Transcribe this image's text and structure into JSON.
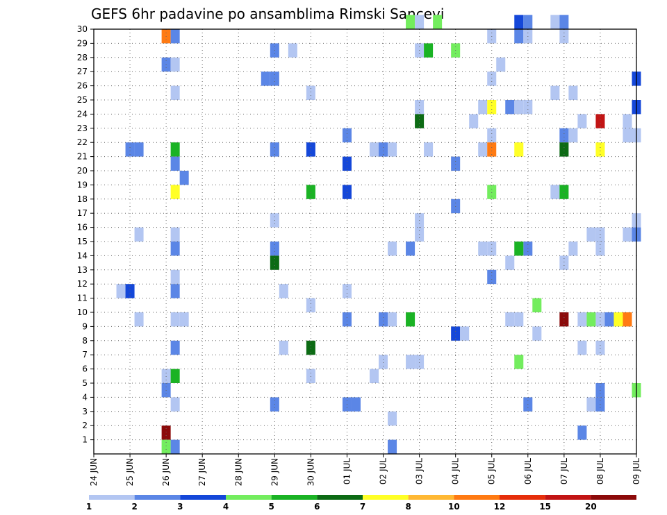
{
  "chart_data": {
    "type": "heatmap",
    "title": "GEFS 6hr padavine po ansamblima Rimski Sancevi",
    "xlabel": "",
    "ylabel": "",
    "x_ticks": [
      "24 JUN",
      "25 JUN",
      "26 JUN",
      "27 JUN",
      "28 JUN",
      "29 JUN",
      "30 JUN",
      "01 JUL",
      "02 JUL",
      "03 JUL",
      "04 JUL",
      "05 JUL",
      "06 JUL",
      "07 JUL",
      "08 JUL",
      "09 JUL"
    ],
    "y_ticks": [
      1,
      2,
      3,
      4,
      5,
      6,
      7,
      8,
      9,
      10,
      11,
      12,
      13,
      14,
      15,
      16,
      17,
      18,
      19,
      20,
      21,
      22,
      23,
      24,
      25,
      26,
      27,
      28,
      29,
      30
    ],
    "ylim": [
      0,
      30
    ],
    "time_step_hours": 6,
    "grid": true,
    "legend": {
      "position": "bottom",
      "levels": [
        "1",
        "2",
        "3",
        "4",
        "5",
        "6",
        "7",
        "8",
        "10",
        "12",
        "15",
        "20"
      ],
      "colors": [
        "#b3c6f2",
        "#5b86e6",
        "#1447d9",
        "#73ed5e",
        "#1ab324",
        "#0c6b14",
        "#ffff26",
        "#ffb833",
        "#ff7a12",
        "#e62e0a",
        "#c21414",
        "#8c0a0a"
      ]
    },
    "cells": [
      {
        "x": "26 JUN 00Z",
        "member": 29,
        "value": 10
      },
      {
        "x": "26 JUN 06Z",
        "member": 29,
        "value": 2
      },
      {
        "x": "26 JUN 00Z",
        "member": 27,
        "value": 2
      },
      {
        "x": "26 JUN 06Z",
        "member": 27,
        "value": 1
      },
      {
        "x": "26 JUN 06Z",
        "member": 25,
        "value": 1
      },
      {
        "x": "25 JUN 00Z",
        "member": 21,
        "value": 2
      },
      {
        "x": "25 JUN 06Z",
        "member": 21,
        "value": 2
      },
      {
        "x": "26 JUN 06Z",
        "member": 21,
        "value": 5
      },
      {
        "x": "26 JUN 06Z",
        "member": 20,
        "value": 2
      },
      {
        "x": "26 JUN 12Z",
        "member": 19,
        "value": 2
      },
      {
        "x": "26 JUN 06Z",
        "member": 18,
        "value": 7
      },
      {
        "x": "25 JUN 06Z",
        "member": 15,
        "value": 1
      },
      {
        "x": "26 JUN 06Z",
        "member": 15,
        "value": 1
      },
      {
        "x": "26 JUN 06Z",
        "member": 14,
        "value": 2
      },
      {
        "x": "26 JUN 06Z",
        "member": 12,
        "value": 1
      },
      {
        "x": "24 JUN 18Z",
        "member": 11,
        "value": 1
      },
      {
        "x": "25 JUN 00Z",
        "member": 11,
        "value": 3
      },
      {
        "x": "26 JUN 06Z",
        "member": 11,
        "value": 2
      },
      {
        "x": "25 JUN 06Z",
        "member": 9,
        "value": 1
      },
      {
        "x": "26 JUN 06Z",
        "member": 9,
        "value": 1
      },
      {
        "x": "26 JUN 12Z",
        "member": 9,
        "value": 1
      },
      {
        "x": "26 JUN 06Z",
        "member": 7,
        "value": 2
      },
      {
        "x": "26 JUN 00Z",
        "member": 5,
        "value": 1
      },
      {
        "x": "26 JUN 06Z",
        "member": 5,
        "value": 5
      },
      {
        "x": "26 JUN 00Z",
        "member": 4,
        "value": 2
      },
      {
        "x": "26 JUN 06Z",
        "member": 3,
        "value": 1
      },
      {
        "x": "26 JUN 00Z",
        "member": 1,
        "value": 20
      },
      {
        "x": "26 JUN 00Z",
        "member": 0,
        "value": 4
      },
      {
        "x": "26 JUN 06Z",
        "member": 0,
        "value": 2
      },
      {
        "x": "29 JUN 00Z",
        "member": 28,
        "value": 2
      },
      {
        "x": "29 JUN 12Z",
        "member": 28,
        "value": 1
      },
      {
        "x": "28 JUN 18Z",
        "member": 26,
        "value": 2
      },
      {
        "x": "29 JUN 00Z",
        "member": 26,
        "value": 2
      },
      {
        "x": "30 JUN 00Z",
        "member": 25,
        "value": 1
      },
      {
        "x": "29 JUN 00Z",
        "member": 21,
        "value": 2
      },
      {
        "x": "30 JUN 00Z",
        "member": 21,
        "value": 3
      },
      {
        "x": "30 JUN 00Z",
        "member": 18,
        "value": 5
      },
      {
        "x": "29 JUN 00Z",
        "member": 16,
        "value": 1
      },
      {
        "x": "29 JUN 00Z",
        "member": 14,
        "value": 2
      },
      {
        "x": "29 JUN 00Z",
        "member": 13,
        "value": 6
      },
      {
        "x": "29 JUN 06Z",
        "member": 11,
        "value": 1
      },
      {
        "x": "30 JUN 00Z",
        "member": 10,
        "value": 1
      },
      {
        "x": "29 JUN 06Z",
        "member": 7,
        "value": 1
      },
      {
        "x": "30 JUN 00Z",
        "member": 7,
        "value": 6
      },
      {
        "x": "30 JUN 00Z",
        "member": 5,
        "value": 1
      },
      {
        "x": "29 JUN 00Z",
        "member": 3,
        "value": 2
      },
      {
        "x": "01 JUL 00Z",
        "member": 22,
        "value": 2
      },
      {
        "x": "01 JUL 00Z",
        "member": 20,
        "value": 3
      },
      {
        "x": "01 JUL 00Z",
        "member": 18,
        "value": 3
      },
      {
        "x": "01 JUL 00Z",
        "member": 11,
        "value": 1
      },
      {
        "x": "01 JUL 00Z",
        "member": 9,
        "value": 2
      },
      {
        "x": "01 JUL 00Z",
        "member": 3,
        "value": 2
      },
      {
        "x": "01 JUL 06Z",
        "member": 3,
        "value": 2
      },
      {
        "x": "01 JUL 18Z",
        "member": 21,
        "value": 1
      },
      {
        "x": "02 JUL 00Z",
        "member": 21,
        "value": 2
      },
      {
        "x": "02 JUL 06Z",
        "member": 21,
        "value": 1
      },
      {
        "x": "02 JUL 06Z",
        "member": 14,
        "value": 1
      },
      {
        "x": "02 JUL 00Z",
        "member": 9,
        "value": 2
      },
      {
        "x": "02 JUL 06Z",
        "member": 9,
        "value": 1
      },
      {
        "x": "02 JUL 00Z",
        "member": 6,
        "value": 1
      },
      {
        "x": "01 JUL 18Z",
        "member": 5,
        "value": 1
      },
      {
        "x": "02 JUL 06Z",
        "member": 2,
        "value": 1
      },
      {
        "x": "02 JUL 06Z",
        "member": 0,
        "value": 2
      },
      {
        "x": "02 JUL 18Z",
        "member": 30,
        "value": 4
      },
      {
        "x": "03 JUL 00Z",
        "member": 30,
        "value": 1
      },
      {
        "x": "03 JUL 12Z",
        "member": 30,
        "value": 4
      },
      {
        "x": "03 JUL 00Z",
        "member": 28,
        "value": 1
      },
      {
        "x": "03 JUL 06Z",
        "member": 28,
        "value": 5
      },
      {
        "x": "04 JUL 00Z",
        "member": 28,
        "value": 4
      },
      {
        "x": "03 JUL 00Z",
        "member": 24,
        "value": 1
      },
      {
        "x": "03 JUL 00Z",
        "member": 23,
        "value": 6
      },
      {
        "x": "03 JUL 06Z",
        "member": 21,
        "value": 1
      },
      {
        "x": "03 JUL 00Z",
        "member": 16,
        "value": 1
      },
      {
        "x": "03 JUL 00Z",
        "member": 15,
        "value": 1
      },
      {
        "x": "02 JUL 18Z",
        "member": 14,
        "value": 2
      },
      {
        "x": "02 JUL 18Z",
        "member": 9,
        "value": 5
      },
      {
        "x": "02 JUL 18Z",
        "member": 6,
        "value": 1
      },
      {
        "x": "03 JUL 00Z",
        "member": 6,
        "value": 1
      },
      {
        "x": "04 JUL 00Z",
        "member": 20,
        "value": 2
      },
      {
        "x": "04 JUL 00Z",
        "member": 17,
        "value": 2
      },
      {
        "x": "04 JUL 00Z",
        "member": 8,
        "value": 3
      },
      {
        "x": "04 JUL 06Z",
        "member": 8,
        "value": 1
      },
      {
        "x": "05 JUL 00Z",
        "member": 29,
        "value": 1
      },
      {
        "x": "05 JUL 06Z",
        "member": 27,
        "value": 1
      },
      {
        "x": "05 JUL 00Z",
        "member": 26,
        "value": 1
      },
      {
        "x": "04 JUL 18Z",
        "member": 24,
        "value": 1
      },
      {
        "x": "05 JUL 00Z",
        "member": 24,
        "value": 7
      },
      {
        "x": "04 JUL 12Z",
        "member": 23,
        "value": 1
      },
      {
        "x": "05 JUL 00Z",
        "member": 22,
        "value": 1
      },
      {
        "x": "04 JUL 18Z",
        "member": 21,
        "value": 1
      },
      {
        "x": "05 JUL 00Z",
        "member": 21,
        "value": 10
      },
      {
        "x": "05 JUL 00Z",
        "member": 18,
        "value": 4
      },
      {
        "x": "04 JUL 18Z",
        "member": 14,
        "value": 1
      },
      {
        "x": "05 JUL 00Z",
        "member": 14,
        "value": 1
      },
      {
        "x": "05 JUL 12Z",
        "member": 13,
        "value": 1
      },
      {
        "x": "05 JUL 00Z",
        "member": 12,
        "value": 2
      },
      {
        "x": "05 JUL 18Z",
        "member": 30,
        "value": 3
      },
      {
        "x": "06 JUL 00Z",
        "member": 30,
        "value": 2
      },
      {
        "x": "05 JUL 18Z",
        "member": 29,
        "value": 2
      },
      {
        "x": "06 JUL 00Z",
        "member": 29,
        "value": 1
      },
      {
        "x": "05 JUL 12Z",
        "member": 24,
        "value": 2
      },
      {
        "x": "05 JUL 18Z",
        "member": 24,
        "value": 1
      },
      {
        "x": "06 JUL 00Z",
        "member": 24,
        "value": 1
      },
      {
        "x": "05 JUL 18Z",
        "member": 21,
        "value": 7
      },
      {
        "x": "05 JUL 12Z",
        "member": 9,
        "value": 1
      },
      {
        "x": "05 JUL 18Z",
        "member": 9,
        "value": 1
      },
      {
        "x": "05 JUL 18Z",
        "member": 6,
        "value": 4
      },
      {
        "x": "06 JUL 00Z",
        "member": 14,
        "value": 2
      },
      {
        "x": "05 JUL 18Z",
        "member": 14,
        "value": 5
      },
      {
        "x": "06 JUL 06Z",
        "member": 10,
        "value": 4
      },
      {
        "x": "06 JUL 06Z",
        "member": 8,
        "value": 1
      },
      {
        "x": "06 JUL 00Z",
        "member": 3,
        "value": 2
      },
      {
        "x": "06 JUL 18Z",
        "member": 30,
        "value": 1
      },
      {
        "x": "07 JUL 00Z",
        "member": 30,
        "value": 2
      },
      {
        "x": "07 JUL 00Z",
        "member": 29,
        "value": 1
      },
      {
        "x": "06 JUL 18Z",
        "member": 25,
        "value": 1
      },
      {
        "x": "07 JUL 06Z",
        "member": 25,
        "value": 1
      },
      {
        "x": "07 JUL 00Z",
        "member": 22,
        "value": 2
      },
      {
        "x": "07 JUL 06Z",
        "member": 22,
        "value": 1
      },
      {
        "x": "07 JUL 00Z",
        "member": 21,
        "value": 6
      },
      {
        "x": "06 JUL 18Z",
        "member": 18,
        "value": 1
      },
      {
        "x": "07 JUL 00Z",
        "member": 18,
        "value": 5
      },
      {
        "x": "07 JUL 06Z",
        "member": 14,
        "value": 1
      },
      {
        "x": "07 JUL 00Z",
        "member": 13,
        "value": 1
      },
      {
        "x": "07 JUL 00Z",
        "member": 9,
        "value": 20
      },
      {
        "x": "07 JUL 12Z",
        "member": 23,
        "value": 1
      },
      {
        "x": "08 JUL 00Z",
        "member": 23,
        "value": 15
      },
      {
        "x": "08 JUL 00Z",
        "member": 21,
        "value": 7
      },
      {
        "x": "07 JUL 18Z",
        "member": 15,
        "value": 1
      },
      {
        "x": "08 JUL 00Z",
        "member": 15,
        "value": 1
      },
      {
        "x": "08 JUL 00Z",
        "member": 14,
        "value": 1
      },
      {
        "x": "07 JUL 12Z",
        "member": 9,
        "value": 1
      },
      {
        "x": "07 JUL 18Z",
        "member": 9,
        "value": 4
      },
      {
        "x": "08 JUL 00Z",
        "member": 9,
        "value": 1
      },
      {
        "x": "08 JUL 06Z",
        "member": 9,
        "value": 2
      },
      {
        "x": "08 JUL 12Z",
        "member": 9,
        "value": 7
      },
      {
        "x": "08 JUL 18Z",
        "member": 9,
        "value": 10
      },
      {
        "x": "07 JUL 12Z",
        "member": 7,
        "value": 1
      },
      {
        "x": "08 JUL 00Z",
        "member": 7,
        "value": 1
      },
      {
        "x": "08 JUL 00Z",
        "member": 4,
        "value": 2
      },
      {
        "x": "07 JUL 18Z",
        "member": 3,
        "value": 1
      },
      {
        "x": "08 JUL 00Z",
        "member": 3,
        "value": 2
      },
      {
        "x": "07 JUL 12Z",
        "member": 1,
        "value": 2
      },
      {
        "x": "09 JUL 00Z",
        "member": 26,
        "value": 3
      },
      {
        "x": "09 JUL 00Z",
        "member": 24,
        "value": 3
      },
      {
        "x": "08 JUL 18Z",
        "member": 23,
        "value": 1
      },
      {
        "x": "08 JUL 18Z",
        "member": 22,
        "value": 1
      },
      {
        "x": "09 JUL 00Z",
        "member": 22,
        "value": 1
      },
      {
        "x": "09 JUL 00Z",
        "member": 16,
        "value": 1
      },
      {
        "x": "08 JUL 18Z",
        "member": 15,
        "value": 1
      },
      {
        "x": "09 JUL 00Z",
        "member": 15,
        "value": 2
      },
      {
        "x": "09 JUL 00Z",
        "member": 4,
        "value": 4
      }
    ]
  }
}
